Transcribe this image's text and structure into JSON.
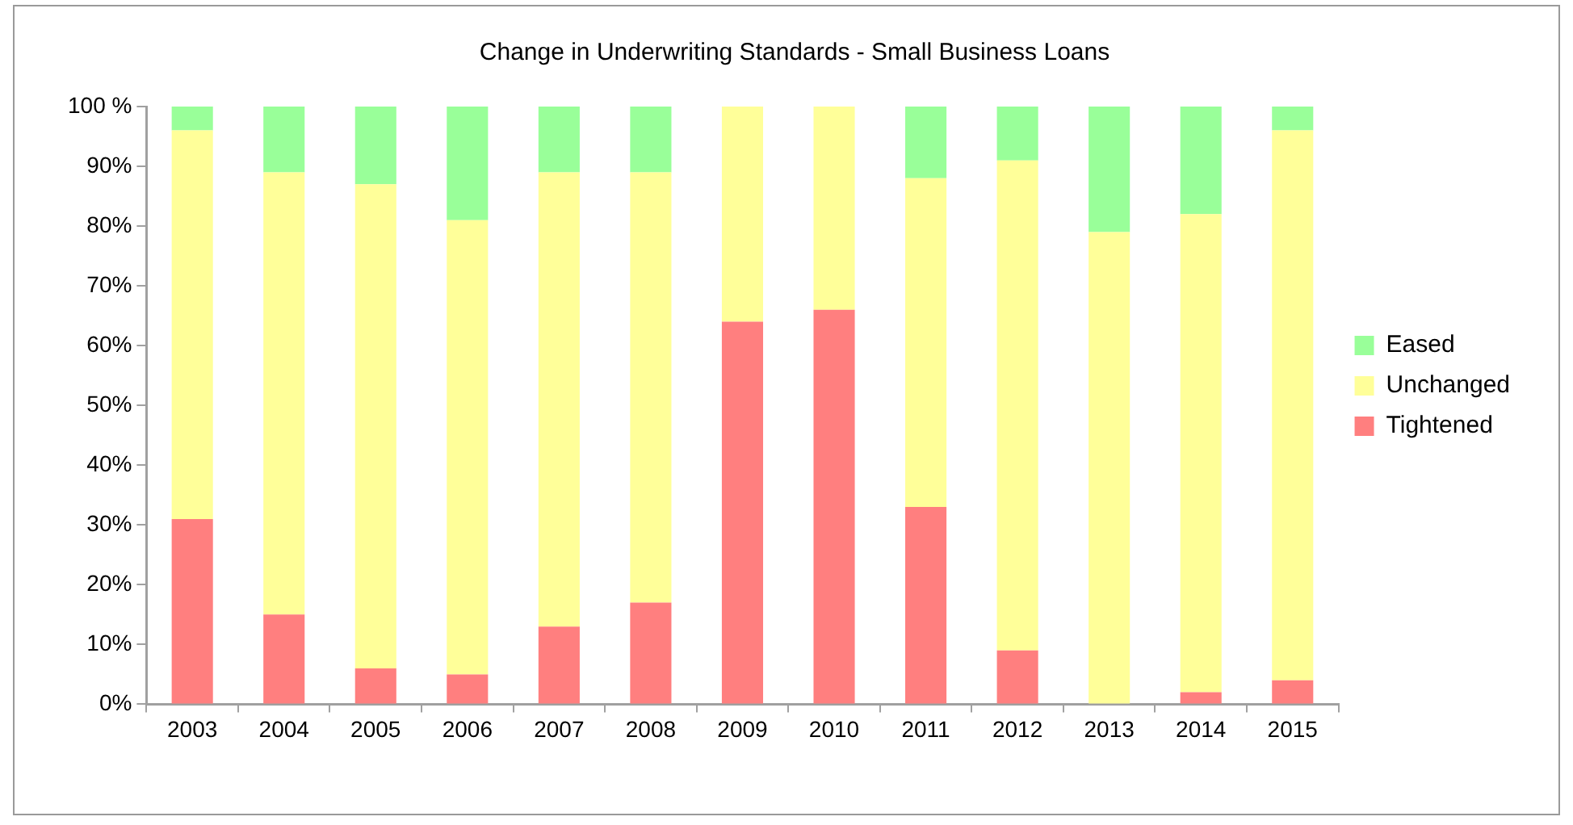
{
  "chart_data": {
    "type": "bar",
    "title": "Change in Underwriting Standards - Small Business Loans",
    "categories": [
      "2003",
      "2004",
      "2005",
      "2006",
      "2007",
      "2008",
      "2009",
      "2010",
      "2011",
      "2012",
      "2013",
      "2014",
      "2015"
    ],
    "stacked": true,
    "series": [
      {
        "name": "Tightened",
        "color": "#ff7f7f",
        "values": [
          31,
          15,
          6,
          5,
          13,
          17,
          64,
          66,
          33,
          9,
          0,
          2,
          4
        ]
      },
      {
        "name": "Unchanged",
        "color": "#ffff99",
        "values": [
          65,
          74,
          81,
          76,
          76,
          72,
          36,
          34,
          55,
          82,
          79,
          80,
          92
        ]
      },
      {
        "name": "Eased",
        "color": "#99ff99",
        "values": [
          4,
          11,
          13,
          19,
          11,
          11,
          0,
          0,
          12,
          9,
          21,
          18,
          4
        ]
      }
    ],
    "ylim": [
      0,
      100
    ],
    "yticks": [
      {
        "value": 0,
        "label": "0%"
      },
      {
        "value": 10,
        "label": "10%"
      },
      {
        "value": 20,
        "label": "20%"
      },
      {
        "value": 30,
        "label": "30%"
      },
      {
        "value": 40,
        "label": "40%"
      },
      {
        "value": 50,
        "label": "50%"
      },
      {
        "value": 60,
        "label": "60%"
      },
      {
        "value": 70,
        "label": "70%"
      },
      {
        "value": 80,
        "label": "80%"
      },
      {
        "value": 90,
        "label": "90%"
      },
      {
        "value": 100,
        "label": "100 %"
      }
    ],
    "grid": false,
    "legend": "right"
  }
}
